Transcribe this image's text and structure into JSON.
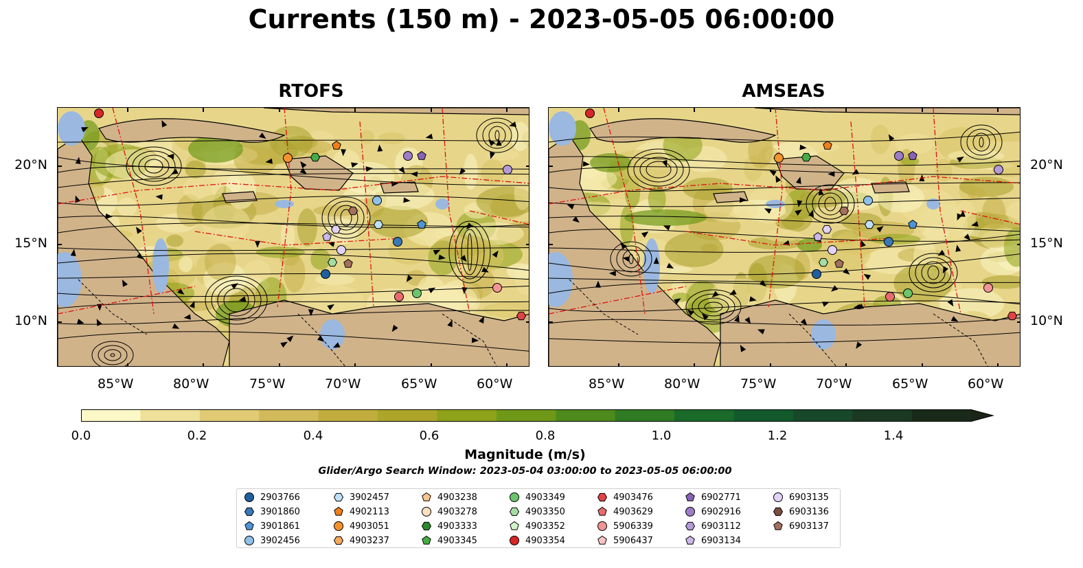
{
  "title": "Currents (150 m) - 2023-05-05 06:00:00",
  "panels": [
    {
      "title": "RTOFS"
    },
    {
      "title": "AMSEAS"
    }
  ],
  "axes": {
    "lon_ticks": [
      "85°W",
      "80°W",
      "75°W",
      "70°W",
      "65°W",
      "60°W"
    ],
    "lat_ticks": [
      "20°N",
      "15°N",
      "10°N"
    ]
  },
  "colorbar": {
    "label": "Magnitude (m/s)",
    "ticks": [
      "0.0",
      "0.2",
      "0.4",
      "0.6",
      "0.8",
      "1.0",
      "1.2",
      "1.4"
    ],
    "colors": [
      "#fdf8c8",
      "#efe09a",
      "#e0ca74",
      "#d2b95a",
      "#c0ad3e",
      "#aca52a",
      "#8ea21a",
      "#6f9818",
      "#4e8a1c",
      "#2f7a22",
      "#1a6a2a",
      "#125a2c",
      "#18482a",
      "#1a3822",
      "#1a2a1a",
      "#1a2418"
    ]
  },
  "search_window": "Glider/Argo Search Window: 2023-05-04 03:00:00 to 2023-05-05 06:00:00",
  "legend": [
    {
      "id": "2903766",
      "marker": "circle",
      "color": "#1f5fa0"
    },
    {
      "id": "3901860",
      "marker": "hexagon",
      "color": "#3a78b8"
    },
    {
      "id": "3901861",
      "marker": "pentagon",
      "color": "#4f94d4"
    },
    {
      "id": "3902456",
      "marker": "circle",
      "color": "#8ec0ea"
    },
    {
      "id": "3902457",
      "marker": "hexagon",
      "color": "#bfe0f8"
    },
    {
      "id": "4902113",
      "marker": "pentagon",
      "color": "#f07f1a"
    },
    {
      "id": "4903051",
      "marker": "circle",
      "color": "#f5922e"
    },
    {
      "id": "4903237",
      "marker": "hexagon",
      "color": "#f8aa5c"
    },
    {
      "id": "4903238",
      "marker": "pentagon",
      "color": "#fac48c"
    },
    {
      "id": "4903278",
      "marker": "circle",
      "color": "#fde0c0"
    },
    {
      "id": "4903333",
      "marker": "hexagon",
      "color": "#2a8a2a"
    },
    {
      "id": "4903345",
      "marker": "pentagon",
      "color": "#46ad46"
    },
    {
      "id": "4903349",
      "marker": "circle",
      "color": "#6cc46c"
    },
    {
      "id": "4903350",
      "marker": "hexagon",
      "color": "#a4dea4"
    },
    {
      "id": "4903352",
      "marker": "pentagon",
      "color": "#d0f4c8"
    },
    {
      "id": "4903354",
      "marker": "circle",
      "color": "#d62728"
    },
    {
      "id": "4903476",
      "marker": "hexagon",
      "color": "#e04448"
    },
    {
      "id": "4903629",
      "marker": "pentagon",
      "color": "#e86a6e"
    },
    {
      "id": "5906339",
      "marker": "circle",
      "color": "#f29496"
    },
    {
      "id": "5906437",
      "marker": "pentagon",
      "color": "#fcc4c4"
    },
    {
      "id": "6902771",
      "marker": "pentagon",
      "color": "#8a62b8"
    },
    {
      "id": "6902916",
      "marker": "circle",
      "color": "#9d7cc8"
    },
    {
      "id": "6903112",
      "marker": "hexagon",
      "color": "#b49ad8"
    },
    {
      "id": "6903134",
      "marker": "pentagon",
      "color": "#cab8ea"
    },
    {
      "id": "6903135",
      "marker": "circle",
      "color": "#e2d2f6"
    },
    {
      "id": "6903136",
      "marker": "hexagon",
      "color": "#7a4e40"
    },
    {
      "id": "6903137",
      "marker": "pentagon",
      "color": "#a4705e"
    }
  ],
  "chart_data": {
    "type": "map",
    "lon_range": [
      "89°W",
      "57.5°W"
    ],
    "lat_range": [
      "7°N",
      "24°N"
    ],
    "colorbar_range": [
      0.0,
      1.5
    ],
    "colorbar_extend": "max",
    "variable": "Magnitude (m/s)",
    "panels": [
      "RTOFS",
      "AMSEAS"
    ],
    "streamlines": true,
    "eez_boundaries": "red dash-dot",
    "bathymetry_contours": [
      "1000",
      "2000"
    ]
  }
}
